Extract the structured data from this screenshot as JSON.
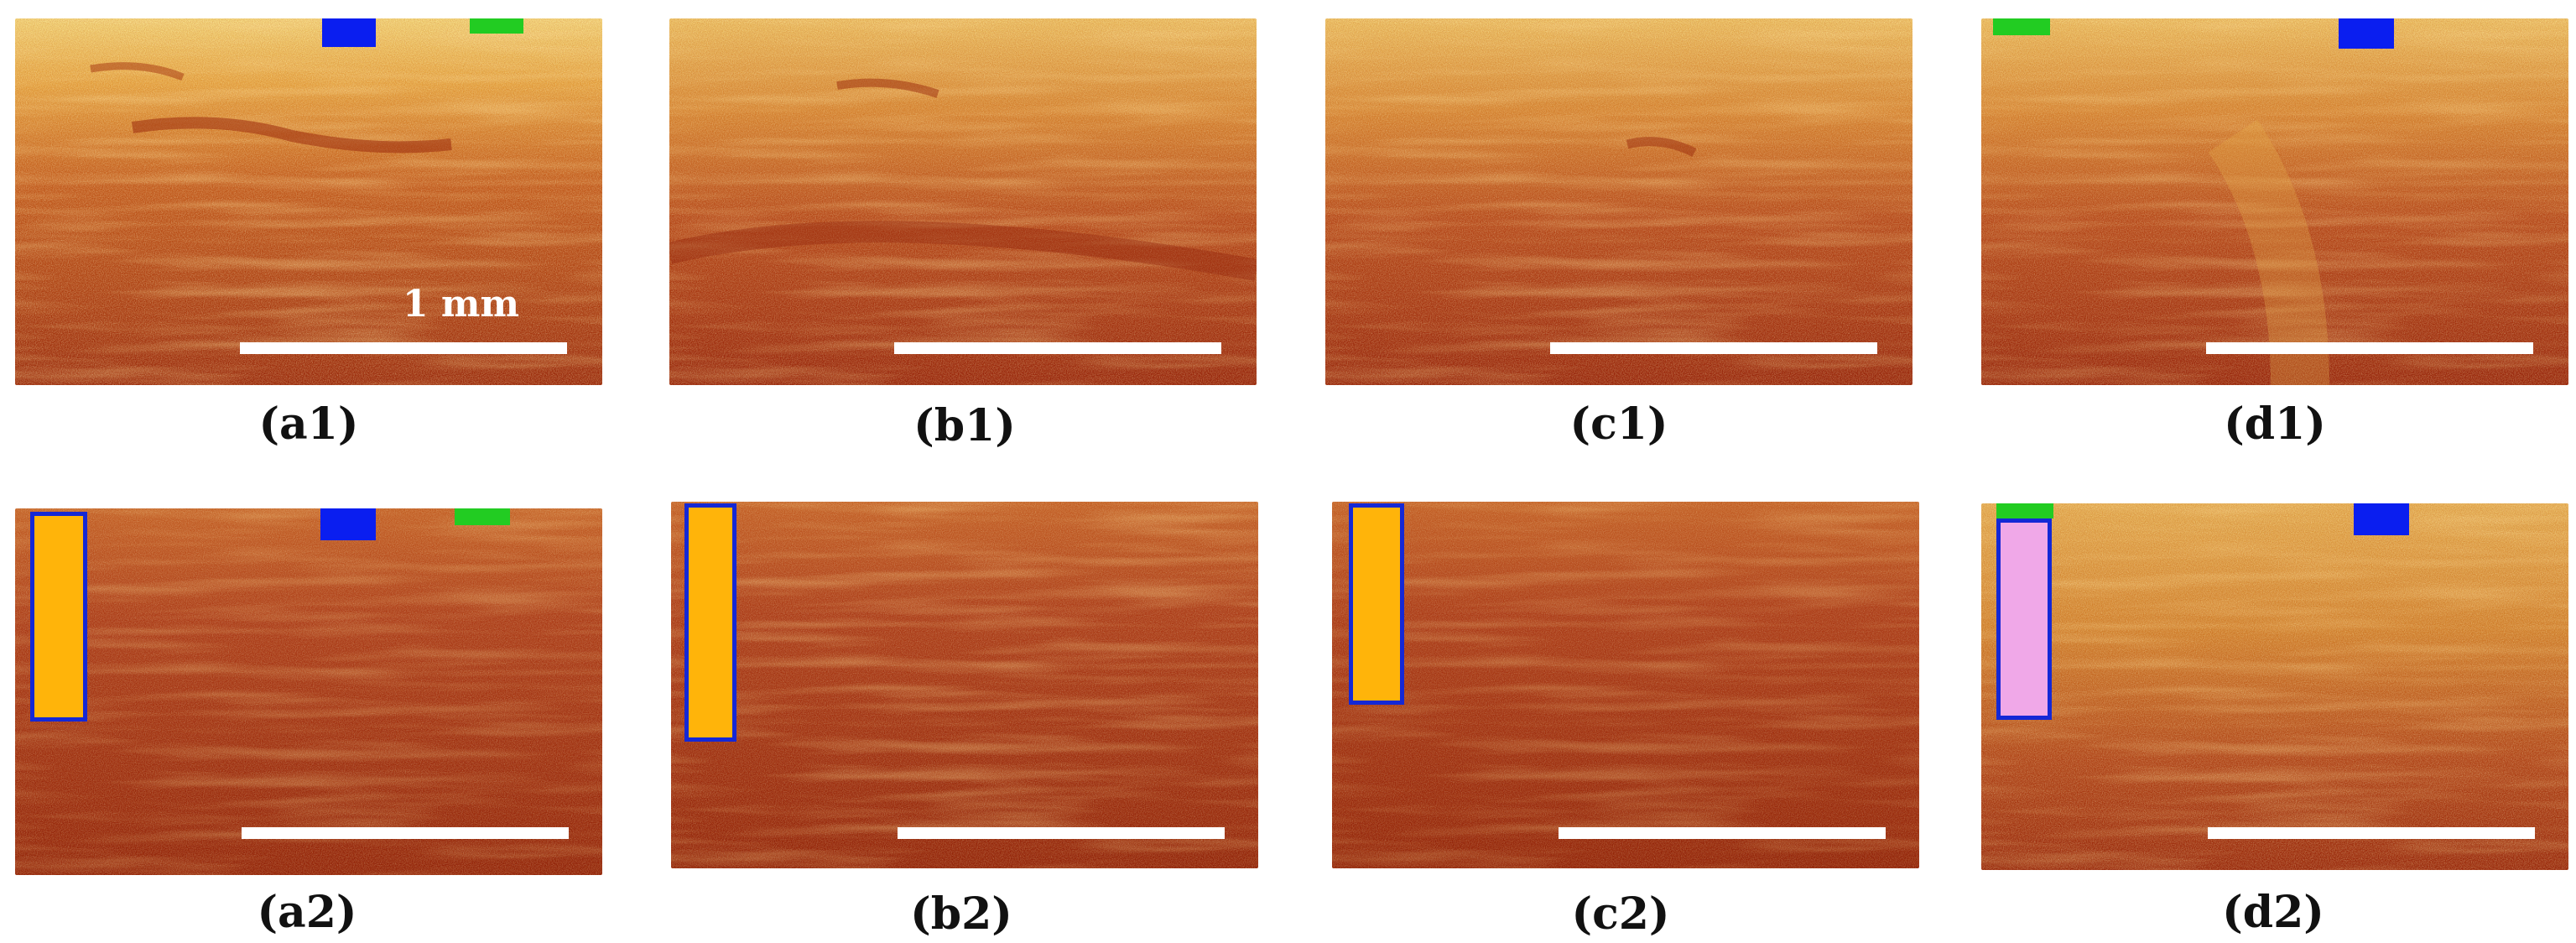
{
  "figure": {
    "scale_bar_label": "1 mm",
    "colors": {
      "tissue_dark": "#8f1d08",
      "tissue_bright": "#f8e490",
      "marker_blue": "#0a1ef0",
      "marker_green": "#22cc22",
      "roi_border": "#1428d6",
      "roi_fill_orange": "#ffb40a",
      "roi_fill_pink": "#f0a8e8"
    },
    "panels": [
      {
        "id": "a1",
        "label": "(a1)"
      },
      {
        "id": "b1",
        "label": "(b1)"
      },
      {
        "id": "c1",
        "label": "(c1)"
      },
      {
        "id": "d1",
        "label": "(d1)"
      },
      {
        "id": "a2",
        "label": "(a2)"
      },
      {
        "id": "b2",
        "label": "(b2)"
      },
      {
        "id": "c2",
        "label": "(c2)"
      },
      {
        "id": "d2",
        "label": "(d2)"
      }
    ]
  }
}
